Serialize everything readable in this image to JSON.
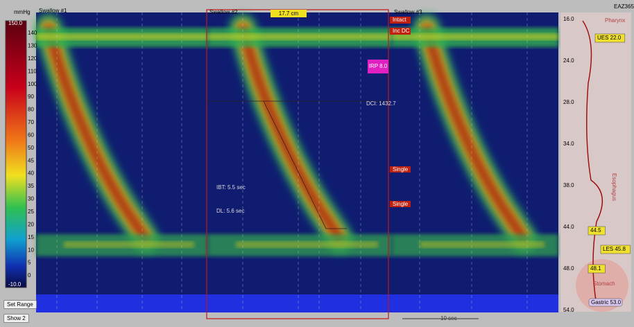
{
  "colorbar": {
    "unit": "mmHg",
    "max": "150.0",
    "min": "-10.0",
    "ticks": [
      "140",
      "130",
      "120",
      "110",
      "100",
      "90",
      "80",
      "70",
      "60",
      "50",
      "45",
      "40",
      "35",
      "30",
      "25",
      "20",
      "15",
      "10",
      "5",
      "0"
    ]
  },
  "swallows": [
    "Swallow #1",
    "Swallow #2",
    "Swallow #3"
  ],
  "header": {
    "code": "EAZ365",
    "length": "17.7 cm"
  },
  "events": [
    "Intact",
    "Inc DC"
  ],
  "irp": "IRP 8.0",
  "metrics": {
    "dci": "DCI: 1432.7",
    "ibt": "IBT: 5.5 sec",
    "dl": "DL: 5.6 sec"
  },
  "pattern": [
    "Single",
    "Single"
  ],
  "depth_ticks": [
    "16.0",
    "24.0",
    "28.0",
    "34.0",
    "38.0",
    "44.0",
    "48.0",
    "54.0"
  ],
  "regions": [
    "Pharynx",
    "Esophagus",
    "Stomach"
  ],
  "markers": [
    "UES 22.0",
    "44.5",
    "LES 45.8",
    "48.1"
  ],
  "gastric": "Gastric 53.0",
  "buttons": [
    "Set Range",
    "Show 2"
  ],
  "scale": "10 sec"
}
